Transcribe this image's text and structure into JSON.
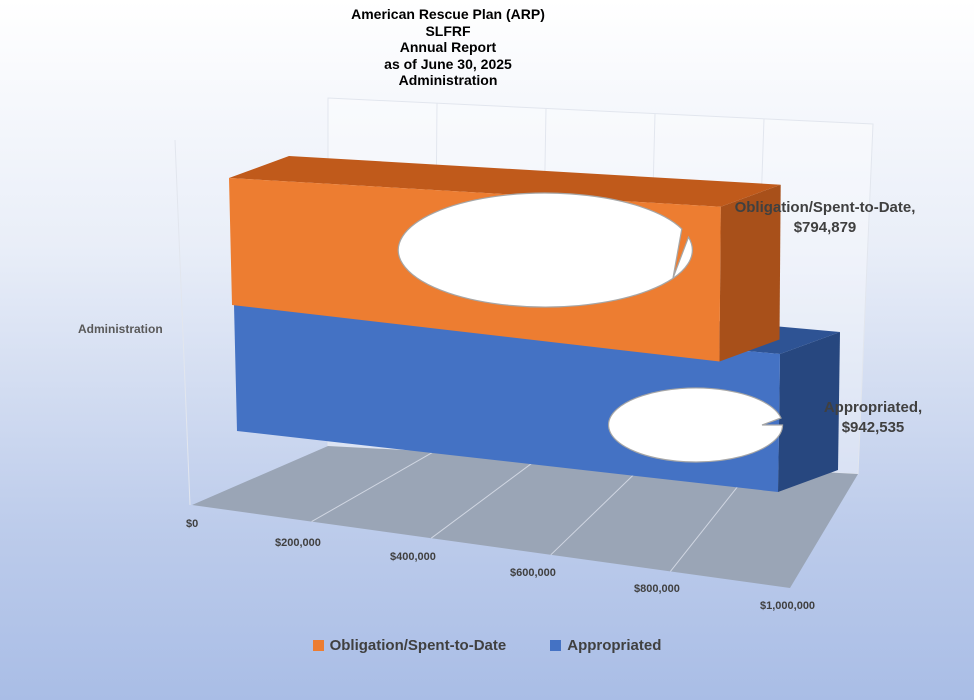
{
  "chart_data": {
    "type": "bar",
    "orientation": "horizontal-3d",
    "title_lines": [
      "American Rescue Plan (ARP)",
      "SLFRF",
      "Annual Report",
      "as of June 30, 2025",
      "Administration"
    ],
    "categories": [
      "Administration"
    ],
    "series": [
      {
        "name": "Obligation/Spent-to-Date",
        "values": [
          794879
        ],
        "color": "#ED7D31"
      },
      {
        "name": "Appropriated",
        "values": [
          942535
        ],
        "color": "#4472C4"
      }
    ],
    "xlim": [
      0,
      1000000
    ],
    "x_ticks": [
      "$0",
      "$200,000",
      "$400,000",
      "$600,000",
      "$800,000",
      "$1,000,000"
    ],
    "data_labels": [
      {
        "line1": "Obligation/Spent-to-Date,",
        "line2": "$794,879"
      },
      {
        "line1": "Appropriated,",
        "line2": "$942,535"
      }
    ],
    "legend_position": "bottom",
    "grid": true
  },
  "colors": {
    "orange_front": "#ED7D31",
    "orange_top": "#C05A1B",
    "orange_side": "#A8501A",
    "blue_front": "#4472C4",
    "blue_top": "#2E5394",
    "blue_side": "#27477F",
    "floor": "#9AA5B6"
  }
}
